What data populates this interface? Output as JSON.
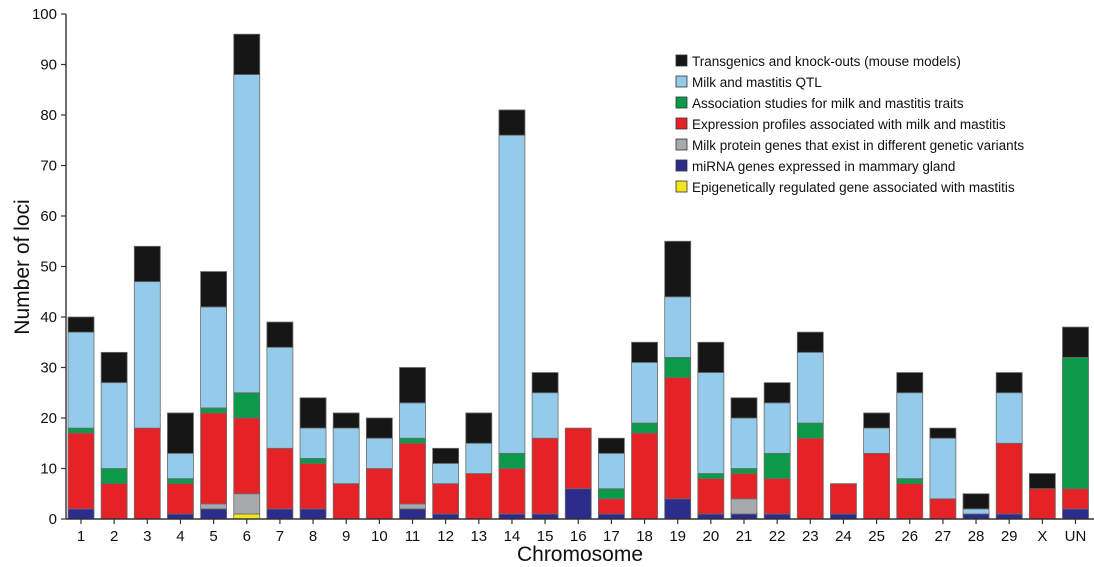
{
  "chart_data": {
    "type": "bar",
    "stacked": true,
    "xlabel": "Chromosome",
    "ylabel": "Number of loci",
    "ylim": [
      0,
      100
    ],
    "yticks": [
      0,
      10,
      20,
      30,
      40,
      50,
      60,
      70,
      80,
      90,
      100
    ],
    "grid": false,
    "legend_position": "top-right",
    "categories": [
      "1",
      "2",
      "3",
      "4",
      "5",
      "6",
      "7",
      "8",
      "9",
      "10",
      "11",
      "12",
      "13",
      "14",
      "15",
      "16",
      "17",
      "18",
      "19",
      "20",
      "21",
      "22",
      "23",
      "24",
      "25",
      "26",
      "27",
      "28",
      "29",
      "X",
      "UN"
    ],
    "series": [
      {
        "name": "Epigenetically regulated gene associated with mastitis",
        "color": "#f2e51c",
        "values": [
          0,
          0,
          0,
          0,
          0,
          1,
          0,
          0,
          0,
          0,
          0,
          0,
          0,
          0,
          0,
          0,
          0,
          0,
          0,
          0,
          0,
          0,
          0,
          0,
          0,
          0,
          0,
          0,
          0,
          0,
          0
        ]
      },
      {
        "name": "miRNA genes expressed in mammary gland",
        "color": "#2b2c8c",
        "values": [
          2,
          0,
          0,
          1,
          2,
          0,
          2,
          2,
          0,
          0,
          2,
          1,
          0,
          1,
          1,
          6,
          1,
          0,
          4,
          1,
          1,
          1,
          0,
          1,
          0,
          0,
          0,
          1,
          1,
          0,
          2
        ]
      },
      {
        "name": "Milk protein genes that exist in different genetic variants",
        "color": "#a8a9ad",
        "values": [
          0,
          0,
          0,
          0,
          1,
          4,
          0,
          0,
          0,
          0,
          1,
          0,
          0,
          0,
          0,
          0,
          0,
          0,
          0,
          0,
          3,
          0,
          0,
          0,
          0,
          0,
          0,
          0,
          0,
          0,
          0
        ]
      },
      {
        "name": "Expression profiles associated with milk and mastitis",
        "color": "#e52326",
        "values": [
          15,
          7,
          18,
          6,
          18,
          15,
          12,
          9,
          7,
          10,
          12,
          6,
          9,
          9,
          15,
          12,
          3,
          17,
          24,
          7,
          5,
          7,
          16,
          6,
          13,
          7,
          4,
          0,
          14,
          6,
          4
        ]
      },
      {
        "name": "Association studies for milk and mastitis traits",
        "color": "#0a9a4a",
        "values": [
          1,
          3,
          0,
          1,
          1,
          5,
          0,
          1,
          0,
          0,
          1,
          0,
          0,
          3,
          0,
          0,
          2,
          2,
          4,
          1,
          1,
          5,
          3,
          0,
          0,
          1,
          0,
          0,
          0,
          0,
          26
        ]
      },
      {
        "name": "Milk and mastitis QTL",
        "color": "#94cbea",
        "values": [
          19,
          17,
          29,
          5,
          20,
          63,
          20,
          6,
          11,
          6,
          7,
          4,
          6,
          63,
          9,
          0,
          7,
          12,
          12,
          20,
          10,
          10,
          14,
          0,
          5,
          17,
          12,
          1,
          10,
          0,
          0
        ]
      },
      {
        "name": "Transgenics and knock-outs (mouse models)",
        "color": "#161616",
        "values": [
          3,
          6,
          7,
          8,
          7,
          8,
          5,
          6,
          3,
          4,
          7,
          3,
          6,
          5,
          4,
          0,
          3,
          4,
          11,
          6,
          4,
          4,
          4,
          0,
          3,
          4,
          2,
          3,
          4,
          3,
          6
        ]
      }
    ],
    "legend_order": [
      "Transgenics and knock-outs (mouse models)",
      "Milk and mastitis QTL",
      "Association studies for milk and mastitis traits",
      "Expression profiles associated with milk and mastitis",
      "Milk protein genes that exist in different genetic variants",
      "miRNA genes expressed in mammary gland",
      "Epigenetically regulated gene associated with mastitis"
    ]
  }
}
